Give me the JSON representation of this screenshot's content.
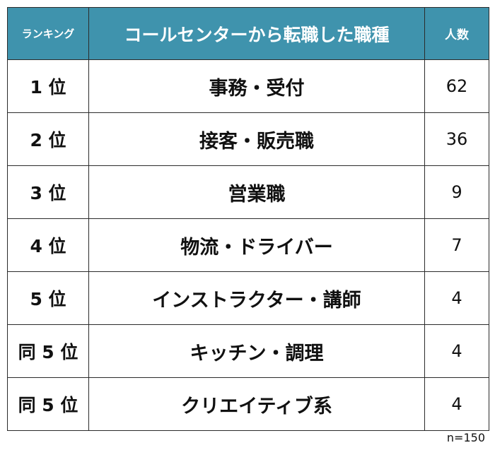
{
  "colors": {
    "header_background": "#3f93ad",
    "header_text": "#ffffff",
    "border": "#2b2b2b"
  },
  "table": {
    "headers": {
      "rank": "ランキング",
      "job": "コールセンターから転職した職種",
      "count": "人数"
    },
    "rows": [
      {
        "rank": "1 位",
        "job": "事務・受付",
        "count": "62"
      },
      {
        "rank": "2 位",
        "job": "接客・販売職",
        "count": "36"
      },
      {
        "rank": "3 位",
        "job": "営業職",
        "count": "9"
      },
      {
        "rank": "4 位",
        "job": "物流・ドライバー",
        "count": "7"
      },
      {
        "rank": "5 位",
        "job": "インストラクター・講師",
        "count": "4"
      },
      {
        "rank": "同 5 位",
        "job": "キッチン・調理",
        "count": "4"
      },
      {
        "rank": "同 5 位",
        "job": "クリエイティブ系",
        "count": "4"
      }
    ]
  },
  "footer": {
    "sample_size": "n=150"
  }
}
